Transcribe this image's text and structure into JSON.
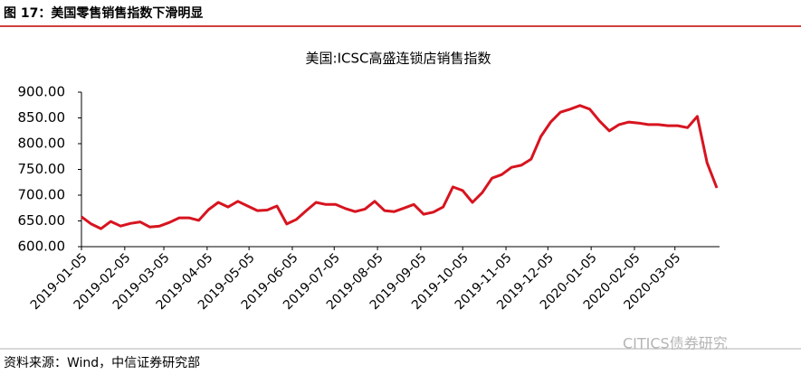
{
  "header": {
    "title": "图 17：美国零售销售指数下滑明显"
  },
  "chart_data": {
    "type": "line",
    "title": "美国:ICSC高盛连锁店销售指数",
    "x": [
      "2019-01-05",
      "2019-01-12",
      "2019-01-19",
      "2019-01-26",
      "2019-02-02",
      "2019-02-09",
      "2019-02-16",
      "2019-02-23",
      "2019-03-02",
      "2019-03-09",
      "2019-03-16",
      "2019-03-23",
      "2019-03-30",
      "2019-04-06",
      "2019-04-13",
      "2019-04-20",
      "2019-04-27",
      "2019-05-04",
      "2019-05-11",
      "2019-05-18",
      "2019-05-25",
      "2019-06-01",
      "2019-06-08",
      "2019-06-15",
      "2019-06-22",
      "2019-06-29",
      "2019-07-06",
      "2019-07-13",
      "2019-07-20",
      "2019-07-27",
      "2019-08-03",
      "2019-08-10",
      "2019-08-17",
      "2019-08-24",
      "2019-08-31",
      "2019-09-07",
      "2019-09-14",
      "2019-09-21",
      "2019-09-28",
      "2019-10-05",
      "2019-10-12",
      "2019-10-19",
      "2019-10-26",
      "2019-11-02",
      "2019-11-09",
      "2019-11-16",
      "2019-11-23",
      "2019-11-30",
      "2019-12-07",
      "2019-12-14",
      "2019-12-21",
      "2019-12-28",
      "2020-01-04",
      "2020-01-11",
      "2020-01-18",
      "2020-01-25",
      "2020-02-01",
      "2020-02-08",
      "2020-02-15",
      "2020-02-22",
      "2020-02-29",
      "2020-03-07",
      "2020-03-14",
      "2020-03-21",
      "2020-03-28",
      "2020-04-04"
    ],
    "series": [
      {
        "name": "美国:ICSC高盛连锁店销售指数",
        "color": "#d7141f",
        "values": [
          658,
          644,
          635,
          649,
          640,
          645,
          648,
          638,
          640,
          647,
          656,
          656,
          651,
          672,
          686,
          677,
          688,
          679,
          670,
          671,
          679,
          644,
          653,
          670,
          686,
          682,
          682,
          674,
          668,
          673,
          688,
          670,
          668,
          675,
          682,
          663,
          667,
          677,
          716,
          709,
          686,
          705,
          733,
          740,
          754,
          758,
          770,
          814,
          842,
          861,
          867,
          874,
          867,
          844,
          825,
          837,
          842,
          840,
          837,
          837,
          835,
          835,
          831,
          853,
          763,
          714
        ]
      }
    ],
    "xlim": [
      "2019-01-05",
      "2020-04-04"
    ],
    "xticks": [
      "2019-01-05",
      "2019-02-05",
      "2019-03-05",
      "2019-04-05",
      "2019-05-05",
      "2019-06-05",
      "2019-07-05",
      "2019-08-05",
      "2019-09-05",
      "2019-10-05",
      "2019-11-05",
      "2019-12-05",
      "2020-01-05",
      "2020-02-05",
      "2020-03-05"
    ],
    "ylim": [
      600,
      900
    ],
    "yticks": [
      {
        "value": 600,
        "label": "600.00"
      },
      {
        "value": 650,
        "label": "650.00"
      },
      {
        "value": 700,
        "label": "700.00"
      },
      {
        "value": 750,
        "label": "750.00"
      },
      {
        "value": 800,
        "label": "800.00"
      },
      {
        "value": 850,
        "label": "850.00"
      },
      {
        "value": 900,
        "label": "900.00"
      }
    ]
  },
  "footer": {
    "source": "资料来源：Wind，中信证券研究部",
    "watermark": "CITICS债券研究"
  }
}
